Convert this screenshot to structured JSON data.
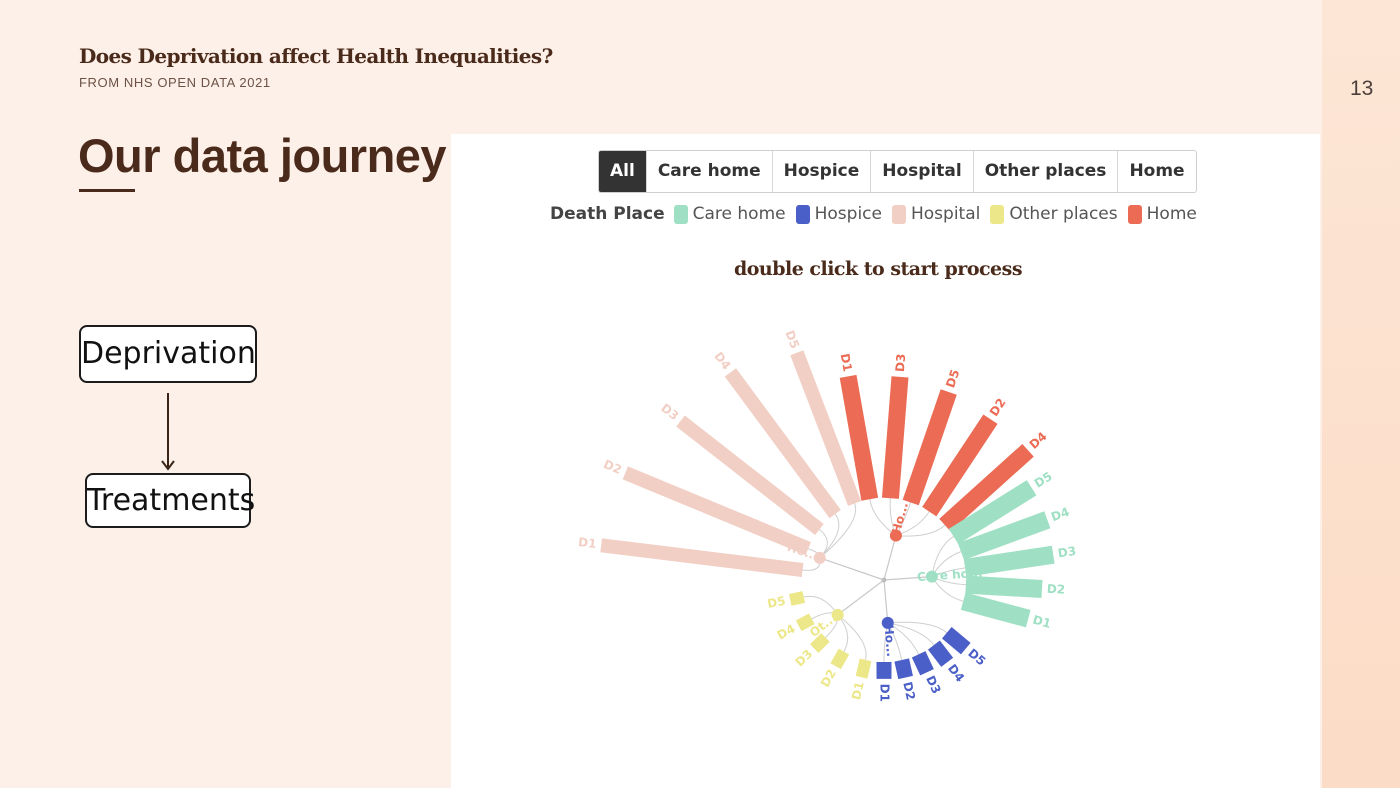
{
  "slide": {
    "header_title": "Does Deprivation affect Health Inequalities?",
    "header_subtitle": "FROM NHS OPEN DATA 2021",
    "page_number": "13",
    "section_title": "Our data journey",
    "flow": {
      "box1": "Deprivation",
      "box2": "Treatments"
    }
  },
  "panel": {
    "tabs": [
      {
        "label": "All",
        "active": true
      },
      {
        "label": "Care home",
        "active": false
      },
      {
        "label": "Hospice",
        "active": false
      },
      {
        "label": "Hospital",
        "active": false
      },
      {
        "label": "Other places",
        "active": false
      },
      {
        "label": "Home",
        "active": false
      }
    ],
    "legend_title": "Death Place",
    "legend": [
      {
        "label": "Care home",
        "color": "#9fe0c4"
      },
      {
        "label": "Hospice",
        "color": "#4b5fc8"
      },
      {
        "label": "Hospital",
        "color": "#f2cfc4"
      },
      {
        "label": "Other places",
        "color": "#ece788"
      },
      {
        "label": "Home",
        "color": "#ec6b54"
      }
    ],
    "hint": "double click to start process"
  },
  "chart_data": {
    "type": "radial-bar-tree",
    "groups": [
      {
        "name": "Hospital",
        "node_label": "Ho...",
        "color": "#f2cfc4",
        "items": [
          {
            "label": "D1",
            "value": 205
          },
          {
            "label": "D2",
            "value": 200
          },
          {
            "label": "D3",
            "value": 178
          },
          {
            "label": "D4",
            "value": 178
          },
          {
            "label": "D5",
            "value": 163
          }
        ]
      },
      {
        "name": "Home",
        "node_label": "Ho...",
        "color": "#ec6b54",
        "items": [
          {
            "label": "D1",
            "value": 126
          },
          {
            "label": "D3",
            "value": 123
          },
          {
            "label": "D5",
            "value": 118
          },
          {
            "label": "D2",
            "value": 112
          },
          {
            "label": "D4",
            "value": 113
          }
        ]
      },
      {
        "name": "Care home",
        "node_label": "Care ho...",
        "color": "#9fe0c4",
        "items": [
          {
            "label": "D5",
            "value": 93
          },
          {
            "label": "D4",
            "value": 93
          },
          {
            "label": "D3",
            "value": 90
          },
          {
            "label": "D2",
            "value": 77
          },
          {
            "label": "D1",
            "value": 68
          }
        ]
      },
      {
        "name": "Hospice",
        "node_label": "Ho...",
        "color": "#4b5fc8",
        "items": [
          {
            "label": "D5",
            "value": 25
          },
          {
            "label": "D4",
            "value": 22
          },
          {
            "label": "D3",
            "value": 20
          },
          {
            "label": "D2",
            "value": 18
          },
          {
            "label": "D1",
            "value": 17
          }
        ]
      },
      {
        "name": "Other places",
        "node_label": "Ot...",
        "color": "#ece788",
        "items": [
          {
            "label": "D1",
            "value": 18
          },
          {
            "label": "D2",
            "value": 17
          },
          {
            "label": "D3",
            "value": 16
          },
          {
            "label": "D4",
            "value": 15
          },
          {
            "label": "D5",
            "value": 14
          }
        ]
      }
    ]
  }
}
